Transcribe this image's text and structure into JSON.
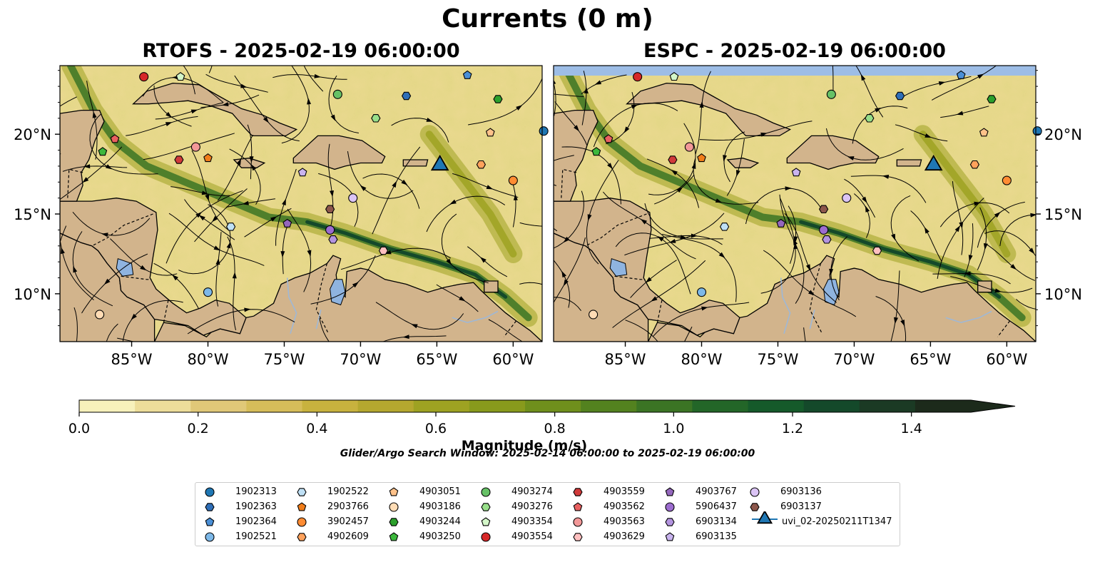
{
  "figure": {
    "title": "Currents (0 m)",
    "left_panel_title": "RTOFS - 2025-02-19 06:00:00",
    "right_panel_title": "ESPC - 2025-02-19 06:00:00",
    "colorbar_label": "Magnitude (m/s)",
    "search_window": "Glider/Argo Search Window: 2025-02-14 06:00:00 to 2025-02-19 06:00:00"
  },
  "chart_data": {
    "type": "heatmap",
    "description_type": "map",
    "x_range_deg": [
      -89.7,
      -58.1
    ],
    "y_range_deg": [
      7.0,
      24.3
    ],
    "x_ticks": [
      -85,
      -80,
      -75,
      -70,
      -65,
      -60
    ],
    "x_tick_labels": [
      "85°W",
      "80°W",
      "75°W",
      "70°W",
      "65°W",
      "60°W"
    ],
    "y_ticks": [
      10,
      15,
      20
    ],
    "y_tick_labels": [
      "10°N",
      "15°N",
      "20°N"
    ],
    "colorbar": {
      "min": 0.0,
      "max": 1.5,
      "extend": "max",
      "ticks": [
        0.0,
        0.2,
        0.4,
        0.6,
        0.8,
        1.0,
        1.2,
        1.4
      ],
      "tick_labels": [
        "0.0",
        "0.2",
        "0.4",
        "0.6",
        "0.8",
        "1.0",
        "1.2",
        "1.4"
      ],
      "colors": [
        "#f7f1bb",
        "#eddd9a",
        "#e0c878",
        "#d6bd5a",
        "#c8b23e",
        "#b5a82f",
        "#9ea222",
        "#889a1c",
        "#6f8f1c",
        "#53821f",
        "#3b7424",
        "#236628",
        "#155a2a",
        "#14492a",
        "#1b3a24",
        "#1c2a1b"
      ]
    },
    "series": [
      {
        "name": "1902313",
        "marker": "circle",
        "color": "#1f77b4",
        "lon": -58.0,
        "lat": 20.2
      },
      {
        "name": "1902363",
        "marker": "hexagon",
        "color": "#2f6fb8",
        "lon": -67.0,
        "lat": 22.4
      },
      {
        "name": "1902364",
        "marker": "pentagon",
        "color": "#4a8fd6",
        "lon": -63.0,
        "lat": 23.7
      },
      {
        "name": "1902521",
        "marker": "circle",
        "color": "#7db8e8",
        "lon": -80.0,
        "lat": 10.1
      },
      {
        "name": "1902522",
        "marker": "hexagon",
        "color": "#bfe0f5",
        "lon": -78.5,
        "lat": 14.2
      },
      {
        "name": "2903766",
        "marker": "pentagon",
        "color": "#f07d1a",
        "lon": -80.0,
        "lat": 18.5
      },
      {
        "name": "3902457",
        "marker": "circle",
        "color": "#ff8c33",
        "lon": -60.0,
        "lat": 17.1
      },
      {
        "name": "4902609",
        "marker": "hexagon",
        "color": "#ffa25c",
        "lon": -62.1,
        "lat": 18.1
      },
      {
        "name": "4903051",
        "marker": "pentagon",
        "color": "#ffc28a",
        "lon": -61.5,
        "lat": 20.1
      },
      {
        "name": "4903186",
        "marker": "circle",
        "color": "#ffdcb5",
        "lon": -87.1,
        "lat": 8.7
      },
      {
        "name": "4903244",
        "marker": "hexagon",
        "color": "#2ca02c",
        "lon": -61.0,
        "lat": 22.2
      },
      {
        "name": "4903250",
        "marker": "pentagon",
        "color": "#3cb83c",
        "lon": -86.9,
        "lat": 18.9
      },
      {
        "name": "4903274",
        "marker": "circle",
        "color": "#66c166",
        "lon": -71.5,
        "lat": 22.5
      },
      {
        "name": "4903276",
        "marker": "hexagon",
        "color": "#98df8a",
        "lon": -69.0,
        "lat": 21.0
      },
      {
        "name": "4903354",
        "marker": "pentagon",
        "color": "#d4f7c9",
        "lon": -81.8,
        "lat": 23.6
      },
      {
        "name": "4903554",
        "marker": "circle",
        "color": "#d62728",
        "lon": -84.2,
        "lat": 23.6
      },
      {
        "name": "4903559",
        "marker": "hexagon",
        "color": "#d03a3a",
        "lon": -81.9,
        "lat": 18.4
      },
      {
        "name": "4903562",
        "marker": "pentagon",
        "color": "#e86060",
        "lon": -86.1,
        "lat": 19.7
      },
      {
        "name": "4903563",
        "marker": "circle",
        "color": "#f29898",
        "lon": -80.8,
        "lat": 19.2
      },
      {
        "name": "4903629",
        "marker": "hexagon",
        "color": "#ffc0c0",
        "lon": -68.5,
        "lat": 12.7
      },
      {
        "name": "4903767",
        "marker": "pentagon",
        "color": "#9467bd",
        "lon": -74.8,
        "lat": 14.4
      },
      {
        "name": "5906437",
        "marker": "circle",
        "color": "#9c6ccf",
        "lon": -72.0,
        "lat": 14.0
      },
      {
        "name": "6903134",
        "marker": "hexagon",
        "color": "#b394df",
        "lon": -71.8,
        "lat": 13.4
      },
      {
        "name": "6903135",
        "marker": "pentagon",
        "color": "#c9b4ef",
        "lon": -73.8,
        "lat": 17.6
      },
      {
        "name": "6903136",
        "marker": "circle",
        "color": "#dbc4f5",
        "lon": -70.5,
        "lat": 16.0
      },
      {
        "name": "6903137",
        "marker": "hexagon",
        "color": "#8c564b",
        "lon": -72.0,
        "lat": 15.3
      },
      {
        "name": "uvi_02-20250211T1347",
        "marker": "triangle",
        "color": "#1f77b4",
        "lon": -64.8,
        "lat": 18.2
      }
    ]
  },
  "colors": {
    "land": "#d2b48c",
    "water_body": "#8fb4e0",
    "missing_band": "#9dbde6",
    "streamline": "#000000"
  }
}
